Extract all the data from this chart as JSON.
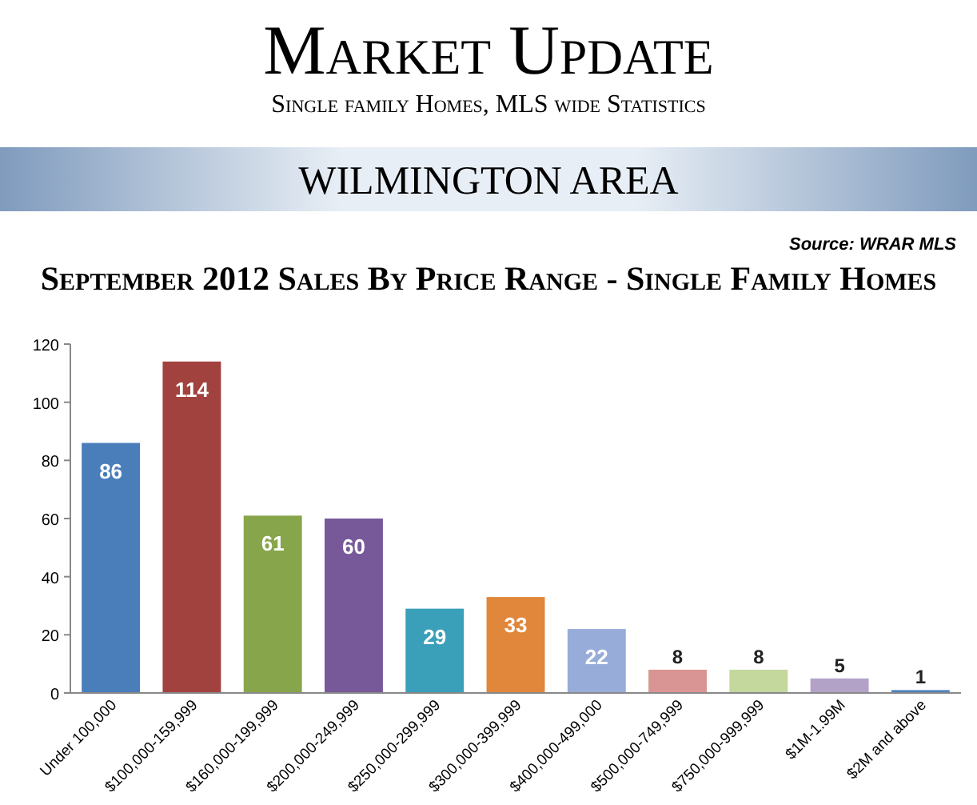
{
  "chart_data": {
    "type": "bar",
    "title": "September 2012 Sales By Price Range - Single Family Homes",
    "annotations": [
      "Market Update",
      "Single family Homes, MLS wide Statistics",
      "WILMINGTON AREA",
      "Source: WRAR MLS"
    ],
    "categories": [
      "Under 100,000",
      "$100,000-159,999",
      "$160,000-199,999",
      "$200,000-249,999",
      "$250,000-299,999",
      "$300,000-399,999",
      "$400,000-499,000",
      "$500,000-749,999",
      "$750,000-999,999",
      "$1M-1.99M",
      "$2M and above"
    ],
    "values": [
      86,
      114,
      61,
      60,
      29,
      33,
      22,
      8,
      8,
      5,
      1
    ],
    "colors": [
      "#4a7ebb",
      "#a2423f",
      "#87a54a",
      "#77599a",
      "#3a9fb8",
      "#e0873b",
      "#97acd9",
      "#d99593",
      "#c4d79c",
      "#b2a2c8",
      "#4f81bd"
    ],
    "ylim": [
      0,
      120
    ],
    "yticks": [
      0,
      20,
      40,
      60,
      80,
      100,
      120
    ],
    "data_labels": true
  }
}
